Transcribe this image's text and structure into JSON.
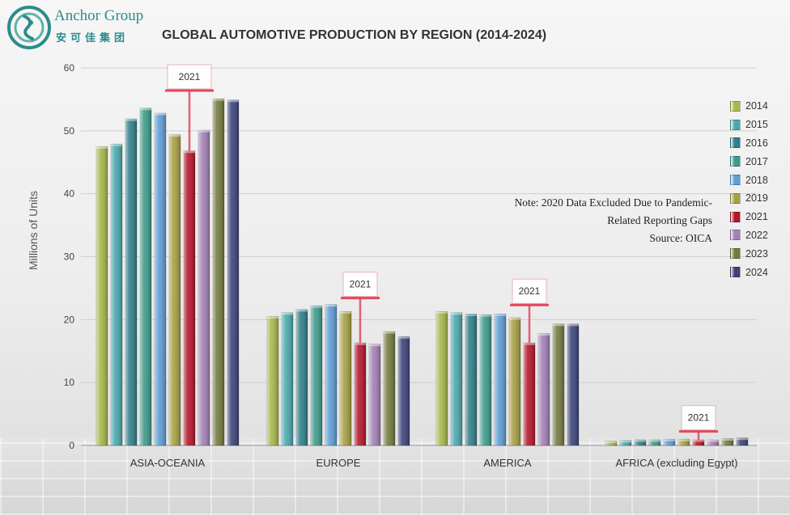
{
  "brand": {
    "name_en": "Anchor Group",
    "name_cn": "安可佳集团"
  },
  "chart_data": {
    "type": "bar",
    "title": "GLOBAL AUTOMOTIVE PRODUCTION BY REGION (2014-2024)",
    "ylabel": "Millions of Units",
    "xlabel": "",
    "ylim": [
      0,
      60
    ],
    "yticks": [
      0,
      10,
      20,
      30,
      40,
      50,
      60
    ],
    "grid": true,
    "legend_position": "right",
    "categories": [
      "ASIA-OCEANIA",
      "EUROPE",
      "AMERICA",
      "AFRICA (excluding Egypt)"
    ],
    "series": [
      {
        "name": "2014",
        "color": "#a7b84a",
        "values": [
          47.5,
          20.5,
          21.3,
          0.7
        ]
      },
      {
        "name": "2015",
        "color": "#4aa8ad",
        "values": [
          47.9,
          21.1,
          21.1,
          0.8
        ]
      },
      {
        "name": "2016",
        "color": "#2f7f8a",
        "values": [
          51.9,
          21.6,
          20.9,
          0.9
        ]
      },
      {
        "name": "2017",
        "color": "#3d9b8c",
        "values": [
          53.6,
          22.2,
          20.8,
          0.9
        ]
      },
      {
        "name": "2018",
        "color": "#5e9ed6",
        "values": [
          52.8,
          22.4,
          20.9,
          1.0
        ]
      },
      {
        "name": "2019",
        "color": "#a7a045",
        "values": [
          49.4,
          21.3,
          20.3,
          1.0
        ]
      },
      {
        "name": "2021",
        "color": "#b5162b",
        "values": [
          46.8,
          16.3,
          16.3,
          0.9
        ]
      },
      {
        "name": "2022",
        "color": "#a381b6",
        "values": [
          50.1,
          16.1,
          17.8,
          0.9
        ]
      },
      {
        "name": "2023",
        "color": "#747a3e",
        "values": [
          55.1,
          18.1,
          19.3,
          1.1
        ]
      },
      {
        "name": "2024",
        "color": "#3c437a",
        "values": [
          54.9,
          17.3,
          19.3,
          1.2
        ]
      }
    ],
    "annotations": [
      {
        "label": "2021",
        "category": "ASIA-OCEANIA"
      },
      {
        "label": "2021",
        "category": "EUROPE"
      },
      {
        "label": "2021",
        "category": "AMERICA"
      },
      {
        "label": "2021",
        "category": "AFRICA (excluding Egypt)"
      }
    ],
    "note_lines": [
      "Note: 2020 Data Excluded Due to Pandemic-",
      "Related Reporting Gaps",
      "Source: OICA"
    ]
  }
}
